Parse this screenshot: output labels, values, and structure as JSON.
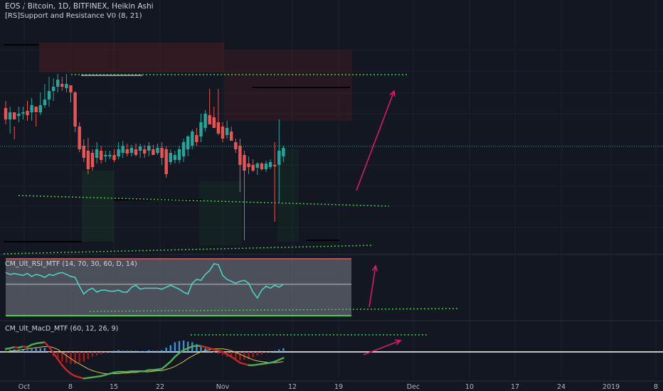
{
  "header": {
    "title": "EOS / Bitcoin, 1D, BITFINEX, Heikin Ashi",
    "indicator": "[RS]Support and Resistance V0 (8, 21)"
  },
  "rsi_pane": {
    "label": "CM_Ult_RSI_MTF (14, 70, 30, 60, D, 14)"
  },
  "macd_pane": {
    "label": "CM_Ult_MacD_MTF (60, 12, 26, 9)"
  },
  "colors": {
    "background": "#131722",
    "bull": "#26a69a",
    "bear": "#ef5350",
    "support_line": "#3bd440",
    "arrow": "#d81b60",
    "rsi_line": "#4dd0c4",
    "macd_up": "#4caf50",
    "macd_down": "#c62828",
    "signal": "#d4c94a"
  },
  "chart_data": [
    {
      "type": "candlestick",
      "x_ticks": [
        "Oct",
        "8",
        "15",
        "22",
        "Nov",
        "12",
        "19",
        "Dec",
        "10",
        "17",
        "24",
        "2019",
        "8"
      ],
      "candles": [
        [
          0,
          -155,
          152,
          168,
          175,
          142
        ],
        [
          1,
          1,
          168,
          158,
          188,
          150
        ],
        [
          2,
          -1,
          158,
          168,
          178,
          196
        ],
        [
          3,
          0,
          163,
          160,
          172,
          150
        ],
        [
          4,
          1,
          160,
          158,
          168,
          150
        ],
        [
          5,
          -1,
          156,
          162,
          170,
          142
        ],
        [
          6,
          1,
          158,
          148,
          170,
          138
        ],
        [
          7,
          -1,
          150,
          158,
          160,
          178
        ],
        [
          8,
          1,
          158,
          148,
          162,
          130
        ],
        [
          9,
          1,
          148,
          140,
          152,
          118
        ],
        [
          10,
          1,
          140,
          128,
          150,
          108
        ],
        [
          11,
          1,
          128,
          122,
          142,
          110
        ],
        [
          12,
          1,
          122,
          112,
          130,
          104
        ],
        [
          13,
          -1,
          118,
          122,
          128,
          108
        ],
        [
          14,
          1,
          124,
          118,
          130,
          104
        ],
        [
          15,
          -1,
          120,
          130,
          126,
          144
        ],
        [
          16,
          -1,
          130,
          178,
          186,
          128
        ],
        [
          17,
          -1,
          178,
          210,
          214,
          172
        ],
        [
          18,
          -1,
          205,
          222,
          228,
          196
        ],
        [
          19,
          -1,
          212,
          238,
          245,
          194
        ],
        [
          20,
          -1,
          215,
          235,
          240,
          210
        ],
        [
          21,
          1,
          222,
          210,
          230,
          200
        ],
        [
          22,
          -1,
          212,
          225,
          230,
          205
        ],
        [
          23,
          0,
          218,
          220,
          228,
          212
        ],
        [
          24,
          0,
          218,
          220,
          224,
          212
        ],
        [
          25,
          -1,
          218,
          225,
          228,
          210
        ],
        [
          26,
          1,
          220,
          210,
          224,
          200
        ],
        [
          27,
          1,
          215,
          205,
          222,
          198
        ],
        [
          28,
          -1,
          210,
          216,
          220,
          202
        ],
        [
          29,
          1,
          215,
          208,
          220,
          204
        ],
        [
          30,
          -1,
          210,
          218,
          220,
          202
        ],
        [
          31,
          1,
          212,
          206,
          222,
          202
        ],
        [
          32,
          -1,
          210,
          216,
          222,
          204
        ],
        [
          33,
          1,
          212,
          205,
          220,
          200
        ],
        [
          34,
          -1,
          210,
          218,
          216,
          204
        ],
        [
          35,
          1,
          215,
          208,
          218,
          202
        ],
        [
          36,
          -1,
          208,
          222,
          232,
          200
        ],
        [
          37,
          -1,
          210,
          245,
          250,
          206
        ],
        [
          38,
          1,
          228,
          215,
          232,
          210
        ],
        [
          39,
          1,
          225,
          218,
          230,
          212
        ],
        [
          40,
          1,
          225,
          210,
          230,
          205
        ],
        [
          41,
          1,
          220,
          200,
          228,
          195
        ],
        [
          42,
          1,
          210,
          192,
          220,
          190
        ],
        [
          43,
          1,
          205,
          185,
          210,
          182
        ],
        [
          44,
          -1,
          190,
          200,
          205,
          180
        ],
        [
          45,
          1,
          192,
          172,
          200,
          160
        ],
        [
          46,
          1,
          180,
          160,
          185,
          155
        ],
        [
          47,
          -1,
          162,
          175,
          170,
          125
        ],
        [
          48,
          -1,
          165,
          180,
          175,
          150
        ],
        [
          49,
          -1,
          172,
          188,
          190,
          125
        ],
        [
          50,
          -1,
          178,
          195,
          200,
          172
        ],
        [
          51,
          1,
          190,
          180,
          195,
          170
        ],
        [
          52,
          -1,
          185,
          198,
          198,
          178
        ],
        [
          53,
          -1,
          200,
          210,
          215,
          195
        ],
        [
          54,
          -1,
          205,
          232,
          270,
          195
        ],
        [
          55,
          -1,
          218,
          240,
          338,
          212
        ],
        [
          56,
          -1,
          230,
          235,
          245,
          220
        ],
        [
          57,
          -1,
          232,
          240,
          242,
          224
        ],
        [
          58,
          1,
          236,
          230,
          246,
          228
        ],
        [
          59,
          -1,
          230,
          238,
          240,
          228
        ],
        [
          60,
          1,
          238,
          230,
          242,
          226
        ],
        [
          61,
          1,
          235,
          228,
          238,
          224
        ],
        [
          62,
          -1,
          232,
          234,
          312,
          200
        ],
        [
          63,
          1,
          232,
          212,
          285,
          168
        ],
        [
          64,
          1,
          220,
          208,
          228,
          205
        ]
      ],
      "rsi": {
        "upper": 70,
        "lower": 30,
        "values": [
          62,
          60,
          61,
          60,
          59,
          61,
          58,
          60,
          59,
          57,
          60,
          59,
          61,
          62,
          60,
          58,
          57,
          48,
          40,
          44,
          46,
          42,
          44,
          44,
          43,
          43,
          44,
          42,
          42,
          47,
          49,
          45,
          46,
          46,
          46,
          46,
          45,
          47,
          49,
          47,
          45,
          42,
          40,
          51,
          55,
          54,
          60,
          64,
          71,
          70,
          59,
          55,
          53,
          51,
          53,
          54,
          51,
          42,
          36,
          44,
          48,
          46,
          49,
          47,
          50
        ]
      },
      "macd": {
        "macd": [
          5,
          6,
          8,
          7,
          9,
          8,
          12,
          14,
          15,
          16,
          8,
          -2,
          -12,
          -22,
          -30,
          -36,
          -40,
          -42,
          -44,
          -43,
          -42,
          -41,
          -40,
          -38,
          -36,
          -34,
          -33,
          -33,
          -33,
          -32,
          -32,
          -32,
          -32,
          -30,
          -30,
          -29,
          -28,
          -22,
          -16,
          -8,
          -2,
          3,
          6,
          9,
          10,
          10,
          8,
          6,
          4,
          2,
          0,
          -4,
          -8,
          -13,
          -18,
          -20,
          -22,
          -22,
          -21,
          -20,
          -19,
          -18,
          -16,
          -13,
          -10
        ],
        "signal": [
          0,
          1,
          2,
          3,
          4,
          5,
          6,
          7,
          8,
          9,
          9,
          7,
          4,
          -1,
          -6,
          -11,
          -16,
          -20,
          -24,
          -28,
          -31,
          -33,
          -35,
          -36,
          -36,
          -36,
          -36,
          -35,
          -35,
          -34,
          -34,
          -33,
          -33,
          -33,
          -32,
          -31,
          -31,
          -29,
          -27,
          -24,
          -20,
          -16,
          -11,
          -7,
          -3,
          0,
          2,
          4,
          5,
          5,
          5,
          4,
          2,
          -1,
          -4,
          -7,
          -10,
          -13,
          -15,
          -16,
          -17,
          -18,
          -18,
          -17,
          -16
        ],
        "hist": [
          2,
          3,
          4,
          3,
          4,
          3,
          5,
          6,
          6,
          7,
          -1,
          -7,
          -12,
          -16,
          -18,
          -20,
          -20,
          -18,
          -16,
          -12,
          -8,
          -6,
          -4,
          -2,
          0,
          2,
          3,
          2,
          2,
          2,
          2,
          1,
          1,
          3,
          2,
          2,
          3,
          7,
          11,
          16,
          18,
          19,
          17,
          16,
          13,
          10,
          6,
          2,
          -1,
          -3,
          -5,
          -8,
          -10,
          -12,
          -14,
          -13,
          -12,
          -9,
          -6,
          -4,
          -2,
          0,
          2,
          4,
          6
        ]
      }
    }
  ]
}
